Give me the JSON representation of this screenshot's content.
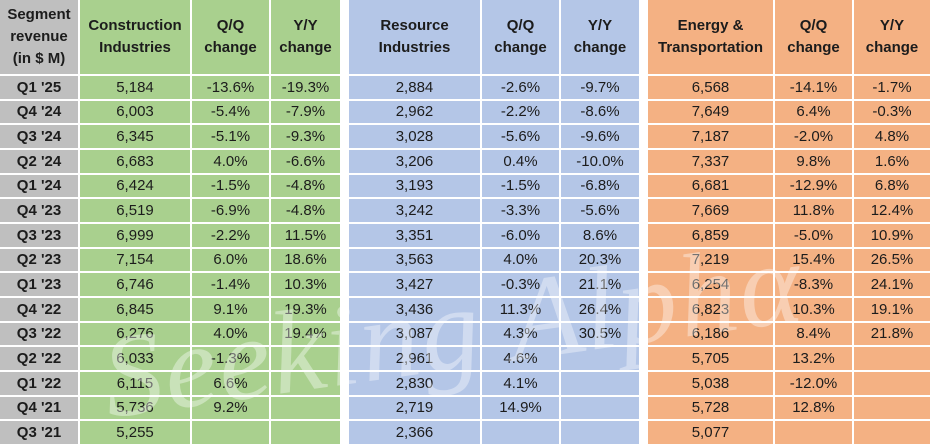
{
  "watermark": {
    "text": "Seeking Alphα"
  },
  "colors": {
    "row_header_bg": "#BFBFBF",
    "gridline": "#FFFFFF",
    "text": "#1C1C1C",
    "construction_bg": "#A9D08E",
    "resource_bg": "#B4C6E7",
    "energy_bg": "#F4B183"
  },
  "chart_data": {
    "type": "table",
    "title": "Segment revenue (in $ M)",
    "corner_label": "Segment revenue (in $ M)",
    "units": "$ M",
    "categories": [
      "Q1 '25",
      "Q4 '24",
      "Q3 '24",
      "Q2 '24",
      "Q1 '24",
      "Q4 '23",
      "Q3 '23",
      "Q2 '23",
      "Q1 '23",
      "Q4 '22",
      "Q3 '22",
      "Q2 '22",
      "Q1 '22",
      "Q4 '21",
      "Q3 '21"
    ],
    "series": [
      {
        "name": "Construction Industries",
        "qq_header": "Q/Q change",
        "yy_header": "Y/Y change",
        "color": "#A9D08E",
        "revenue": [
          5184,
          6003,
          6345,
          6683,
          6424,
          6519,
          6999,
          7154,
          6746,
          6845,
          6276,
          6033,
          6115,
          5736,
          5255
        ],
        "qq_change_pct": [
          -13.6,
          -5.4,
          -5.1,
          4.0,
          -1.5,
          -6.9,
          -2.2,
          6.0,
          -1.4,
          9.1,
          4.0,
          -1.3,
          6.6,
          9.2,
          null
        ],
        "yy_change_pct": [
          -19.3,
          -7.9,
          -9.3,
          -6.6,
          -4.8,
          -4.8,
          11.5,
          18.6,
          10.3,
          19.3,
          19.4,
          null,
          null,
          null,
          null
        ]
      },
      {
        "name": "Resource Industries",
        "qq_header": "Q/Q change",
        "yy_header": "Y/Y change",
        "color": "#B4C6E7",
        "revenue": [
          2884,
          2962,
          3028,
          3206,
          3193,
          3242,
          3351,
          3563,
          3427,
          3436,
          3087,
          2961,
          2830,
          2719,
          2366
        ],
        "qq_change_pct": [
          -2.6,
          -2.2,
          -5.6,
          0.4,
          -1.5,
          -3.3,
          -6.0,
          4.0,
          -0.3,
          11.3,
          4.3,
          4.6,
          4.1,
          14.9,
          null
        ],
        "yy_change_pct": [
          -9.7,
          -8.6,
          -9.6,
          -10.0,
          -6.8,
          -5.6,
          8.6,
          20.3,
          21.1,
          26.4,
          30.5,
          null,
          null,
          null,
          null
        ]
      },
      {
        "name": "Energy & Transportation",
        "qq_header": "Q/Q change",
        "yy_header": "Y/Y change",
        "color": "#F4B183",
        "revenue": [
          6568,
          7649,
          7187,
          7337,
          6681,
          7669,
          6859,
          7219,
          6254,
          6823,
          6186,
          5705,
          5038,
          5728,
          5077
        ],
        "qq_change_pct": [
          -14.1,
          6.4,
          -2.0,
          9.8,
          -12.9,
          11.8,
          -5.0,
          15.4,
          -8.3,
          10.3,
          8.4,
          13.2,
          -12.0,
          12.8,
          null
        ],
        "yy_change_pct": [
          -1.7,
          -0.3,
          4.8,
          1.6,
          6.8,
          12.4,
          10.9,
          26.5,
          24.1,
          19.1,
          21.8,
          null,
          null,
          null,
          null
        ]
      }
    ]
  }
}
